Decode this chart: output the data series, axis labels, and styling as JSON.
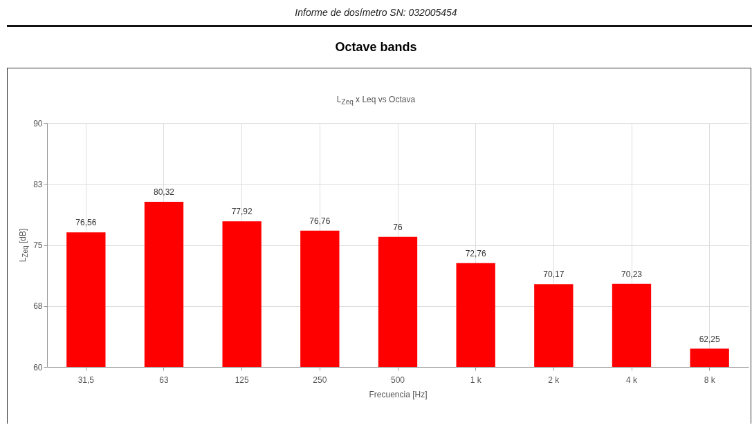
{
  "chart_data": {
    "type": "bar",
    "title": "Octave bands",
    "subtitle": "L$_{Zeq}$ x Leq vs Octava",
    "annotations": [
      "Informe de dosímetro SN: 032005454"
    ],
    "xlabel": "Frecuencia [Hz]",
    "ylabel": "L$_{Zeq}$ [dB]",
    "categories": [
      "31,5",
      "63",
      "125",
      "250",
      "500",
      "1 k",
      "2 k",
      "4 k",
      "8 k"
    ],
    "values": [
      76.56,
      80.32,
      77.92,
      76.76,
      76,
      72.76,
      70.17,
      70.23,
      62.25
    ],
    "value_labels": [
      "76,56",
      "80,32",
      "77,92",
      "76,76",
      "76",
      "72,76",
      "70,17",
      "70,23",
      "62,25"
    ],
    "color": "#ff0000",
    "ylim": [
      60,
      90
    ],
    "yticks": [
      60,
      {
        "value": 67.5,
        "label": "68"
      },
      75,
      {
        "value": 82.5,
        "label": "83"
      },
      90
    ],
    "grid": true
  }
}
